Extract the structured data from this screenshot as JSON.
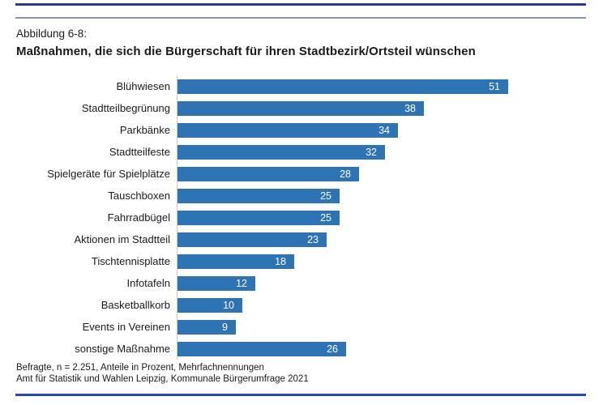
{
  "figure_label": "Abbildung 6-8:",
  "title": "Maßnahmen, die sich die Bürgerschaft für ihren Stadtbezirk/Ortsteil wünschen",
  "chart_data": {
    "type": "bar",
    "orientation": "horizontal",
    "title": "Maßnahmen, die sich die Bürgerschaft für ihren Stadtbezirk/Ortsteil wünschen",
    "categories": [
      "Blühwiesen",
      "Stadtteilbegrünung",
      "Parkbänke",
      "Stadtteilfeste",
      "Spielgeräte für Spielplätze",
      "Tauschboxen",
      "Fahrradbügel",
      "Aktionen im Stadtteil",
      "Tischtennisplatte",
      "Infotafeln",
      "Basketballkorb",
      "Events in Vereinen",
      "sonstige Maßnahme"
    ],
    "values": [
      51,
      38,
      34,
      32,
      28,
      25,
      25,
      23,
      18,
      12,
      10,
      9,
      26
    ],
    "xlabel": "",
    "ylabel": "",
    "xlim": [
      0,
      63
    ],
    "grid": false,
    "legend": false,
    "value_label_position": "inside-end",
    "bar_color": "#2e74b5",
    "value_label_color": "#ffffff"
  },
  "footnotes": {
    "line1": "Befragte, n = 2.251, Anteile in Prozent, Mehrfachnennungen",
    "line2": "Amt für Statistik und Wahlen Leipzig, Kommunale Bürgerumfrage 2021"
  },
  "colors": {
    "bar": "#2e74b5",
    "top_rule": "#2b3a8f",
    "sub_rule": "#8496b0",
    "bottom_rule": "#2a46ae",
    "axis_line": "#c9c9c9"
  }
}
